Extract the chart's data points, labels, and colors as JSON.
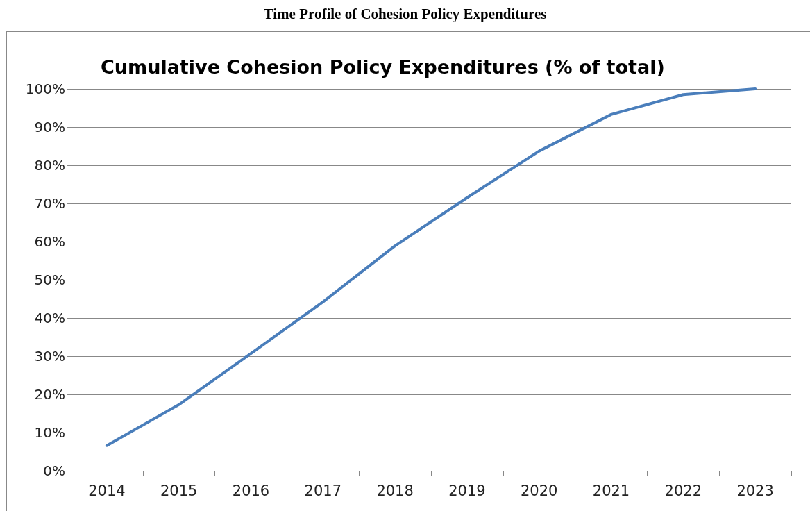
{
  "chart_data": {
    "type": "line",
    "title": "Time Profile of Cohesion Policy Expenditures",
    "subtitle": "Cumulative Cohesion Policy Expenditures (% of total)",
    "categories": [
      "2014",
      "2015",
      "2016",
      "2017",
      "2018",
      "2019",
      "2020",
      "2021",
      "2022",
      "2023"
    ],
    "series": [
      {
        "color": "#4a7ebb",
        "values": [
          6.6,
          17.3,
          30.7,
          44.2,
          58.9,
          71.5,
          83.7,
          93.3,
          98.5,
          100
        ]
      }
    ],
    "ylim": [
      0,
      100
    ],
    "yticks": [
      {
        "value": 0,
        "label": "0%"
      },
      {
        "value": 10,
        "label": "10%"
      },
      {
        "value": 20,
        "label": "20%"
      },
      {
        "value": 30,
        "label": "30%"
      },
      {
        "value": 40,
        "label": "40%"
      },
      {
        "value": 50,
        "label": "50%"
      },
      {
        "value": 60,
        "label": "60%"
      },
      {
        "value": 70,
        "label": "70%"
      },
      {
        "value": 80,
        "label": "80%"
      },
      {
        "value": 90,
        "label": "90%"
      },
      {
        "value": 100,
        "label": "100%"
      }
    ],
    "grid": "y",
    "marker": "none",
    "line_style": "solid"
  }
}
